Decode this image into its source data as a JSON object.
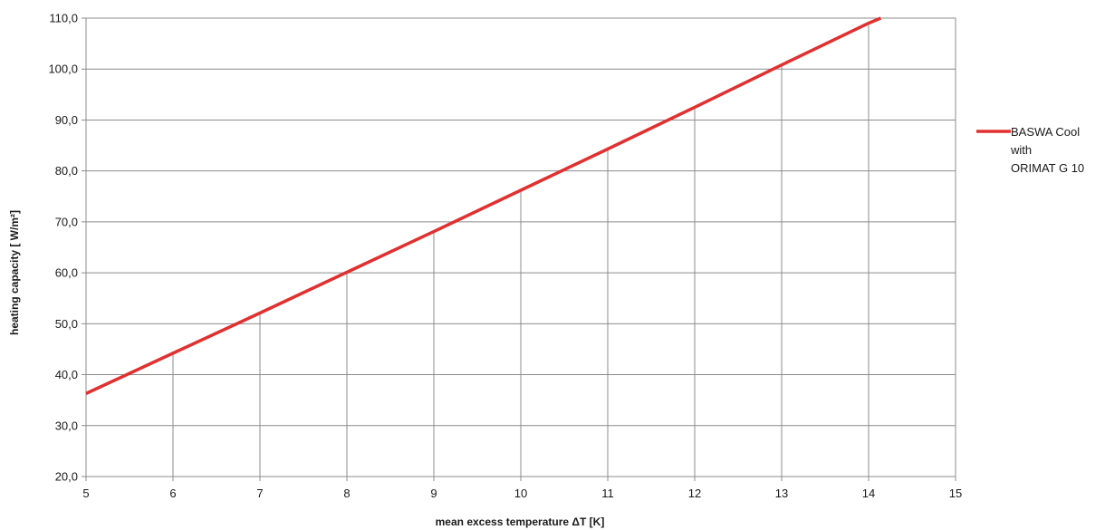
{
  "chart_data": {
    "type": "line",
    "xlabel": "mean excess temperature ΔT  [K]",
    "ylabel": "heating capacity [ W/m²]",
    "xlim": [
      5,
      15
    ],
    "ylim": [
      20,
      110
    ],
    "x_ticks": [
      5,
      6,
      7,
      8,
      9,
      10,
      11,
      12,
      13,
      14,
      15
    ],
    "y_ticks": [
      20,
      30,
      40,
      50,
      60,
      70,
      80,
      90,
      100,
      110
    ],
    "x_tick_labels": [
      "5",
      "6",
      "7",
      "8",
      "9",
      "10",
      "11",
      "12",
      "13",
      "14",
      "15"
    ],
    "y_tick_labels": [
      "20,0",
      "30,0",
      "40,0",
      "50,0",
      "60,0",
      "70,0",
      "80,0",
      "90,0",
      "100,0",
      "110,0"
    ],
    "grid": {
      "horizontal": true,
      "vertical": "drops below the line at integer x"
    },
    "legend_placement": "right",
    "series": [
      {
        "name": "BASWA Cool with ORIMAT G 10",
        "legend_lines": [
          "BASWA Cool",
          "with",
          "ORIMAT G 10"
        ],
        "color": "#e03030",
        "x": [
          5,
          6,
          7,
          8,
          9,
          10,
          11,
          12,
          13,
          14,
          14.14
        ],
        "y": [
          36.3,
          44.2,
          52.1,
          60.1,
          68.1,
          76.2,
          84.3,
          92.5,
          100.8,
          109.0,
          110.0
        ]
      }
    ]
  }
}
